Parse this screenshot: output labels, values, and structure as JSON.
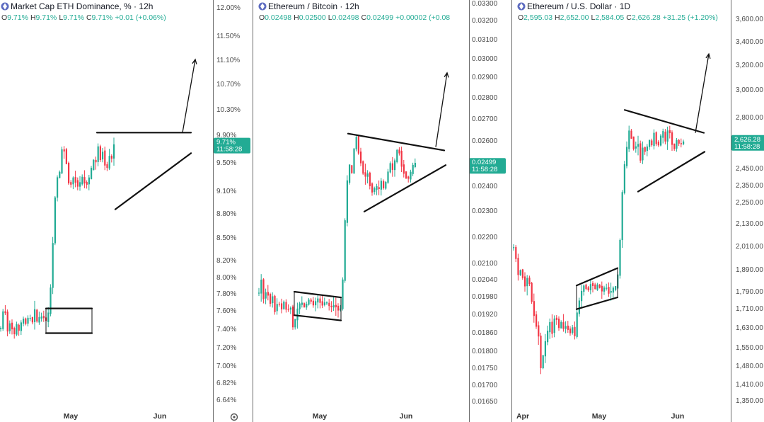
{
  "chart_data": [
    {
      "type": "candlestick",
      "title": "Market Cap ETH Dominance, % · 12h",
      "icon": "ethereum-icon",
      "ohlc_label": {
        "open_key": "O",
        "open": "9.71%",
        "high_key": "H",
        "high": "9.71%",
        "low_key": "L",
        "low": "9.71%",
        "close_key": "C",
        "close": "9.71%",
        "change": "+0.01 (+0.06%)"
      },
      "y_ticks": [
        "12.00%",
        "11.50%",
        "11.10%",
        "10.70%",
        "10.30%",
        "9.90%",
        "9.50%",
        "9.10%",
        "8.80%",
        "8.50%",
        "8.20%",
        "8.00%",
        "7.80%",
        "7.60%",
        "7.40%",
        "7.20%",
        "7.00%",
        "6.82%",
        "6.64%"
      ],
      "y_tick_values": [
        12.0,
        11.5,
        11.1,
        10.7,
        10.3,
        9.9,
        9.5,
        9.1,
        8.8,
        8.5,
        8.2,
        8.0,
        7.8,
        7.6,
        7.4,
        7.2,
        7.0,
        6.82,
        6.64
      ],
      "x_ticks": [
        "May",
        "Jun"
      ],
      "last_price": "9.71%",
      "countdown": "11:58:28",
      "settings_icon": "gear-icon",
      "price_path": [
        [
          0,
          7.4
        ],
        [
          2,
          7.85
        ],
        [
          4,
          7.4
        ],
        [
          6,
          7.6
        ],
        [
          10,
          7.35
        ],
        [
          14,
          7.5
        ],
        [
          18,
          7.3
        ],
        [
          22,
          7.45
        ],
        [
          25,
          7.35
        ],
        [
          28,
          7.5
        ],
        [
          30,
          7.4
        ],
        [
          32,
          7.5
        ],
        [
          36,
          7.45
        ],
        [
          40,
          7.55
        ],
        [
          44,
          7.45
        ],
        [
          48,
          7.6
        ],
        [
          52,
          7.45
        ],
        [
          56,
          7.55
        ],
        [
          60,
          7.5
        ],
        [
          62,
          7.55
        ],
        [
          65,
          7.45
        ],
        [
          68,
          7.6
        ],
        [
          70,
          7.8
        ],
        [
          73,
          8.3
        ],
        [
          76,
          8.9
        ],
        [
          79,
          9.3
        ],
        [
          82,
          9.25
        ],
        [
          86,
          9.6
        ],
        [
          88,
          9.95
        ],
        [
          90,
          9.6
        ],
        [
          92,
          9.35
        ],
        [
          94,
          9.7
        ],
        [
          96,
          9.2
        ],
        [
          98,
          9.35
        ],
        [
          100,
          9.1
        ],
        [
          102,
          9.25
        ],
        [
          104,
          9.35
        ],
        [
          106,
          9.2
        ],
        [
          108,
          9.25
        ],
        [
          110,
          9.05
        ],
        [
          112,
          9.2
        ],
        [
          116,
          9.3
        ],
        [
          120,
          9.15
        ],
        [
          124,
          9.25
        ],
        [
          128,
          9.4
        ],
        [
          132,
          9.55
        ],
        [
          135,
          9.5
        ],
        [
          137,
          9.75
        ],
        [
          140,
          9.6
        ],
        [
          142,
          9.45
        ],
        [
          144,
          9.65
        ],
        [
          146,
          9.5
        ],
        [
          150,
          9.4
        ],
        [
          154,
          9.6
        ],
        [
          156,
          9.5
        ],
        [
          158,
          9.65
        ],
        [
          160,
          9.75
        ]
      ],
      "annotations": {
        "range_box": {
          "x_from": 65,
          "x_to": 130,
          "upper": 7.62,
          "lower": 7.35
        },
        "resistance": {
          "x_from": 137,
          "x_to": 270,
          "y": 9.93
        },
        "support": {
          "x_from": 163,
          "x_to": 270,
          "y_from": 8.85,
          "y_to": 9.63
        },
        "projection": {
          "from": [
            258,
            9.93
          ],
          "to": [
            276,
            11.1
          ]
        }
      },
      "scale": {
        "y_min": 6.55,
        "y_max": 12.15,
        "axis_type": "non-linear (tick positions follow printed labels)"
      }
    },
    {
      "type": "candlestick",
      "title": "Ethereum / Bitcoin · 12h",
      "icon": "ethereum-icon",
      "ohlc_label": {
        "open_key": "O",
        "open": "0.02498",
        "high_key": "H",
        "high": "0.02500",
        "low_key": "L",
        "low": "0.02498",
        "close_key": "C",
        "close": "0.02499",
        "change": "+0.00002 (+0.08"
      },
      "y_ticks": [
        "0.03300",
        "0.03200",
        "0.03100",
        "0.03000",
        "0.02900",
        "0.02800",
        "0.02700",
        "0.02600",
        "0.02400",
        "0.02300",
        "0.02200",
        "0.02100",
        "0.02040",
        "0.01980",
        "0.01920",
        "0.01860",
        "0.01800",
        "0.01750",
        "0.01700",
        "0.01650"
      ],
      "y_tick_values": [
        0.033,
        0.032,
        0.031,
        0.03,
        0.029,
        0.028,
        0.027,
        0.026,
        0.024,
        0.023,
        0.022,
        0.021,
        0.0204,
        0.0198,
        0.0192,
        0.0186,
        0.018,
        0.0175,
        0.017,
        0.0165
      ],
      "x_ticks": [
        "May",
        "Jun"
      ],
      "last_price": "0.02499",
      "countdown": "11:58:28",
      "price_path": [
        [
          365,
          0.0199
        ],
        [
          368,
          0.0204
        ],
        [
          372,
          0.0196
        ],
        [
          376,
          0.0201
        ],
        [
          380,
          0.0195
        ],
        [
          384,
          0.0198
        ],
        [
          388,
          0.0192
        ],
        [
          392,
          0.0197
        ],
        [
          396,
          0.0193
        ],
        [
          400,
          0.0196
        ],
        [
          404,
          0.0193
        ],
        [
          410,
          0.0194
        ],
        [
          414,
          0.0186
        ],
        [
          418,
          0.0193
        ],
        [
          424,
          0.0196
        ],
        [
          430,
          0.0194
        ],
        [
          436,
          0.0197
        ],
        [
          442,
          0.0195
        ],
        [
          448,
          0.0197
        ],
        [
          454,
          0.0195
        ],
        [
          460,
          0.0196
        ],
        [
          466,
          0.0194
        ],
        [
          472,
          0.0195
        ],
        [
          478,
          0.0193
        ],
        [
          482,
          0.0194
        ],
        [
          485,
          0.0215
        ],
        [
          488,
          0.0235
        ],
        [
          492,
          0.025
        ],
        [
          496,
          0.0245
        ],
        [
          500,
          0.0258
        ],
        [
          503,
          0.0262
        ],
        [
          506,
          0.0254
        ],
        [
          510,
          0.0249
        ],
        [
          514,
          0.0243
        ],
        [
          518,
          0.0246
        ],
        [
          522,
          0.024
        ],
        [
          526,
          0.0237
        ],
        [
          530,
          0.024
        ],
        [
          534,
          0.0238
        ],
        [
          538,
          0.0242
        ],
        [
          542,
          0.0238
        ],
        [
          546,
          0.0244
        ],
        [
          550,
          0.025
        ],
        [
          554,
          0.0247
        ],
        [
          558,
          0.0252
        ],
        [
          562,
          0.0258
        ],
        [
          565,
          0.0251
        ],
        [
          568,
          0.0247
        ],
        [
          572,
          0.0244
        ],
        [
          576,
          0.0243
        ],
        [
          580,
          0.0246
        ],
        [
          584,
          0.025
        ],
        [
          588,
          0.0249
        ]
      ],
      "annotations": {
        "range_box": {
          "x_from": 416,
          "x_to": 482,
          "upper_from": 0.01995,
          "upper_to": 0.01975,
          "lower_from": 0.01915,
          "lower_to": 0.01898
        },
        "resistance": {
          "x_from": 492,
          "x_to": 628,
          "y_from": 0.0263,
          "y_to": 0.02555
        },
        "support": {
          "x_from": 515,
          "x_to": 630,
          "y_from": 0.02295,
          "y_to": 0.0249
        },
        "projection": {
          "from": [
            616,
            0.0257
          ],
          "to": [
            632,
            0.0292
          ]
        }
      },
      "scale": {
        "y_min": 0.0163,
        "y_max": 0.0334,
        "axis_type": "log"
      }
    },
    {
      "type": "candlestick",
      "title": "Ethereum / U.S. Dollar · 1D",
      "icon": "ethereum-icon",
      "ohlc_label": {
        "open_key": "O",
        "open": "2,595.03",
        "high_key": "H",
        "high": "2,652.00",
        "low_key": "L",
        "low": "2,584.05",
        "close_key": "C",
        "close": "2,626.28",
        "change": "+31.25 (+1.20%)"
      },
      "y_ticks": [
        "3,600.00",
        "3,400.00",
        "3,200.00",
        "3,000.00",
        "2,800.00",
        "2,450.00",
        "2,350.00",
        "2,250.00",
        "2,130.00",
        "2,010.00",
        "1,890.00",
        "1,790.00",
        "1,710.00",
        "1,630.00",
        "1,550.00",
        "1,480.00",
        "1,410.00",
        "1,350.00"
      ],
      "y_tick_values": [
        3600,
        3400,
        3200,
        3000,
        2800,
        2450,
        2350,
        2250,
        2130,
        2010,
        1890,
        1790,
        1710,
        1630,
        1550,
        1480,
        1410,
        1350
      ],
      "x_ticks": [
        "Apr",
        "May",
        "Jun"
      ],
      "last_price": "2,626.28",
      "countdown": "11:58:28",
      "price_path": [
        [
          725,
          2000
        ],
        [
          728,
          1950
        ],
        [
          732,
          1850
        ],
        [
          736,
          1900
        ],
        [
          740,
          1800
        ],
        [
          744,
          1850
        ],
        [
          748,
          1820
        ],
        [
          752,
          1700
        ],
        [
          756,
          1650
        ],
        [
          760,
          1600
        ],
        [
          764,
          1450
        ],
        [
          768,
          1550
        ],
        [
          772,
          1600
        ],
        [
          776,
          1650
        ],
        [
          780,
          1600
        ],
        [
          784,
          1700
        ],
        [
          788,
          1620
        ],
        [
          792,
          1650
        ],
        [
          796,
          1620
        ],
        [
          800,
          1640
        ],
        [
          804,
          1600
        ],
        [
          808,
          1630
        ],
        [
          812,
          1590
        ],
        [
          815,
          1700
        ],
        [
          820,
          1780
        ],
        [
          825,
          1820
        ],
        [
          830,
          1790
        ],
        [
          835,
          1830
        ],
        [
          840,
          1800
        ],
        [
          845,
          1820
        ],
        [
          850,
          1790
        ],
        [
          855,
          1810
        ],
        [
          860,
          1780
        ],
        [
          866,
          1800
        ],
        [
          870,
          1810
        ],
        [
          874,
          1900
        ],
        [
          877,
          2200
        ],
        [
          880,
          2400
        ],
        [
          884,
          2550
        ],
        [
          888,
          2700
        ],
        [
          892,
          2650
        ],
        [
          896,
          2550
        ],
        [
          900,
          2650
        ],
        [
          904,
          2500
        ],
        [
          908,
          2600
        ],
        [
          912,
          2550
        ],
        [
          916,
          2650
        ],
        [
          920,
          2600
        ],
        [
          924,
          2700
        ],
        [
          928,
          2580
        ],
        [
          932,
          2650
        ],
        [
          936,
          2700
        ],
        [
          940,
          2620
        ],
        [
          944,
          2750
        ],
        [
          948,
          2620
        ],
        [
          952,
          2580
        ],
        [
          956,
          2650
        ],
        [
          960,
          2600
        ],
        [
          964,
          2630
        ],
        [
          968,
          2626
        ]
      ],
      "annotations": {
        "range_box": {
          "x_from": 815,
          "x_to": 873,
          "upper_from": 1815,
          "upper_to": 1895,
          "lower_from": 1705,
          "lower_to": 1760
        },
        "resistance": {
          "x_from": 883,
          "x_to": 995,
          "y_from": 2850,
          "y_to": 2690
        },
        "support": {
          "x_from": 902,
          "x_to": 996,
          "y_from": 2310,
          "y_to": 2560
        },
        "projection": {
          "from": [
            983,
            2690
          ],
          "to": [
            1002,
            3290
          ]
        }
      },
      "scale": {
        "y_min": 1330,
        "y_max": 3700,
        "axis_type": "log"
      }
    }
  ],
  "colors": {
    "up": "#22ab94",
    "down": "#f23645",
    "title_text": "#131722",
    "value_text": "#22ab94",
    "axis_text": "#4a4a4a",
    "icon_bg": "#5c6bc0",
    "separator": "#6b6b6b",
    "badge_bg": "#22ab94"
  }
}
